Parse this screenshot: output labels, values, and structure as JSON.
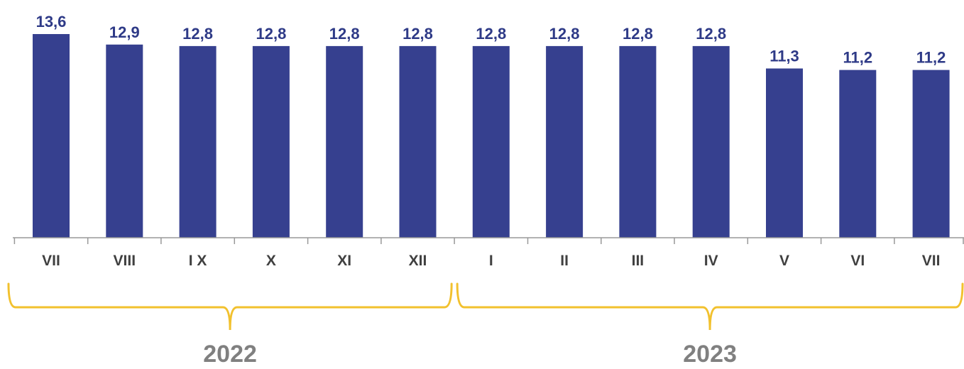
{
  "chart_data": {
    "type": "bar",
    "categories": [
      "VII",
      "VIII",
      "I X",
      "X",
      "XI",
      "XII",
      "I",
      "II",
      "III",
      "IV",
      "V",
      "VI",
      "VII"
    ],
    "values": [
      13.6,
      12.9,
      12.8,
      12.8,
      12.8,
      12.8,
      12.8,
      12.8,
      12.8,
      12.8,
      11.3,
      11.2,
      11.2
    ],
    "value_labels": [
      "13,6",
      "12,9",
      "12,8",
      "12,8",
      "12,8",
      "12,8",
      "12,8",
      "12,8",
      "12,8",
      "12,8",
      "11,3",
      "11,2",
      "11,2"
    ],
    "groups": [
      {
        "label": "2022",
        "first_category_index": 0,
        "last_category_index": 5
      },
      {
        "label": "2023",
        "first_category_index": 6,
        "last_category_index": 12
      }
    ],
    "title": "",
    "xlabel": "",
    "ylabel": "",
    "ylim": [
      0,
      13.6
    ],
    "grid": false,
    "legend": "none",
    "colors": {
      "bar": "#36408f",
      "value_label": "#2e3a87",
      "axis": "#999999",
      "tick_label": "#404040",
      "brace": "#f2c12e",
      "year_label": "#808080"
    }
  }
}
